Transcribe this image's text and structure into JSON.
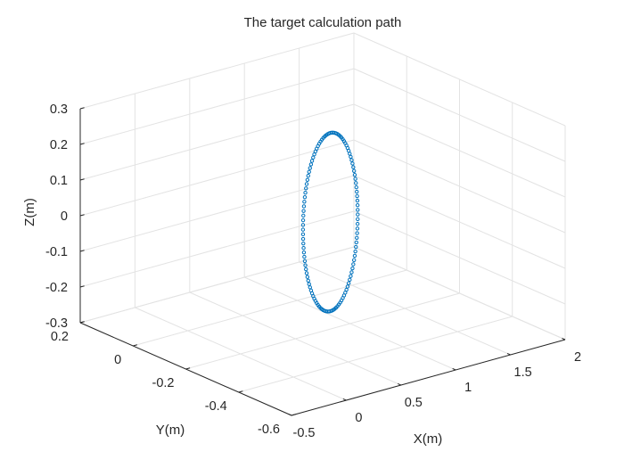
{
  "chart_data": {
    "type": "scatter",
    "title": "The target calculation path",
    "xlabel": "X(m)",
    "ylabel": "Y(m)",
    "zlabel": "Z(m)",
    "xlim": [
      -0.5,
      2
    ],
    "ylim": [
      -0.6,
      0.2
    ],
    "zlim": [
      -0.3,
      0.3
    ],
    "xticks": [
      -0.5,
      0,
      0.5,
      1,
      1.5,
      2
    ],
    "xtick_labels": [
      "-0.5",
      "0",
      "0.5",
      "1",
      "1.5",
      "2"
    ],
    "yticks": [
      -0.6,
      -0.4,
      -0.2,
      0,
      0.2
    ],
    "ytick_labels": [
      "-0.6",
      "-0.4",
      "-0.2",
      "0",
      "0.2"
    ],
    "zticks": [
      -0.3,
      -0.2,
      -0.1,
      0,
      0.1,
      0.2,
      0.3
    ],
    "ztick_labels": [
      "-0.3",
      "-0.2",
      "-0.1",
      "0",
      "0.1",
      "0.2",
      "0.3"
    ],
    "grid": true,
    "view": "3d-isometric",
    "marker": "circle",
    "series": [
      {
        "marker_color": "#0072BD",
        "path": {
          "shape": "circle",
          "points": 120,
          "center": {
            "x": 0.82,
            "y": -0.2,
            "z": 0.0
          },
          "radius": 0.25,
          "plane": "x-z"
        }
      }
    ]
  }
}
